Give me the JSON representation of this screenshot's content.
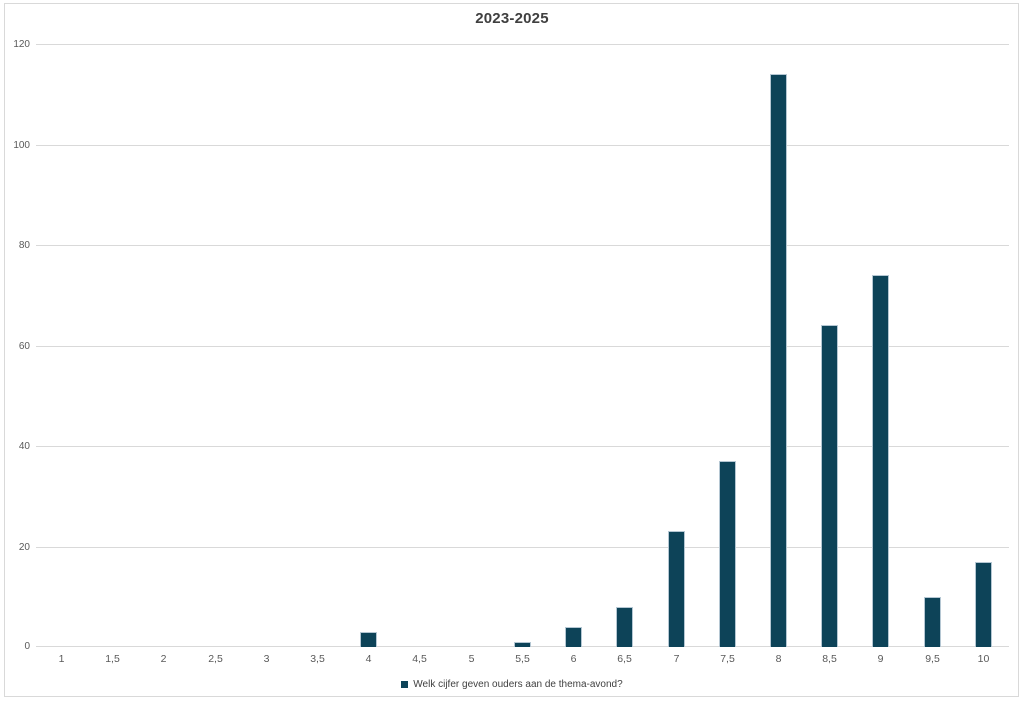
{
  "chart": {
    "title": "2023-2025",
    "legend": {
      "label": "Welk cijfer geven ouders aan de thema-avond?"
    }
  },
  "chart_data": {
    "type": "bar",
    "title": "2023-2025",
    "categories": [
      "1",
      "1,5",
      "2",
      "2,5",
      "3",
      "3,5",
      "4",
      "4,5",
      "5",
      "5,5",
      "6",
      "6,5",
      "7",
      "7,5",
      "8",
      "8,5",
      "9",
      "9,5",
      "10"
    ],
    "values": [
      0,
      0,
      0,
      0,
      0,
      0,
      3,
      0,
      0,
      1,
      4,
      8,
      23,
      37,
      114,
      64,
      74,
      10,
      17
    ],
    "series_name": "Welk cijfer geven ouders aan de thema-avond?",
    "xlabel": "",
    "ylabel": "",
    "ylim": [
      0,
      120
    ],
    "yticks": [
      0,
      20,
      40,
      60,
      80,
      100,
      120
    ],
    "grid": true,
    "legend_position": "bottom",
    "bar_color": "#0d4358",
    "bar_border_color": "#b5c7d3",
    "gridline_color": "#d9d9d9",
    "tick_label_color": "#595959",
    "title_color": "#404040",
    "frame_border_color": "#d9d9d9"
  }
}
